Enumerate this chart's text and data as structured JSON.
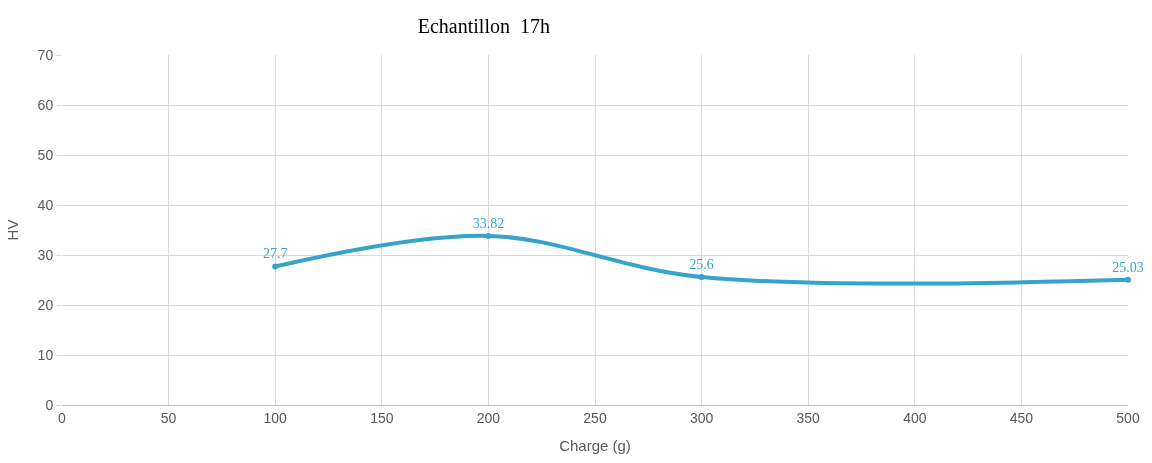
{
  "chart_data": {
    "type": "line",
    "title": "Echantillon  17h",
    "xlabel": "Charge (g)",
    "ylabel": "HV",
    "x": [
      100,
      200,
      300,
      500
    ],
    "series": [
      {
        "color": "#36a3c9",
        "values": [
          27.7,
          33.82,
          25.6,
          25.03
        ]
      }
    ],
    "xlim": [
      0,
      500
    ],
    "xticks": [
      0,
      50,
      100,
      150,
      200,
      250,
      300,
      350,
      400,
      450,
      500
    ],
    "ylim": [
      0,
      70
    ],
    "yticks": [
      0,
      10,
      20,
      30,
      40,
      50,
      60,
      70
    ],
    "grid": true,
    "marker": "circle",
    "line_style": "solid",
    "data_labels": true
  }
}
